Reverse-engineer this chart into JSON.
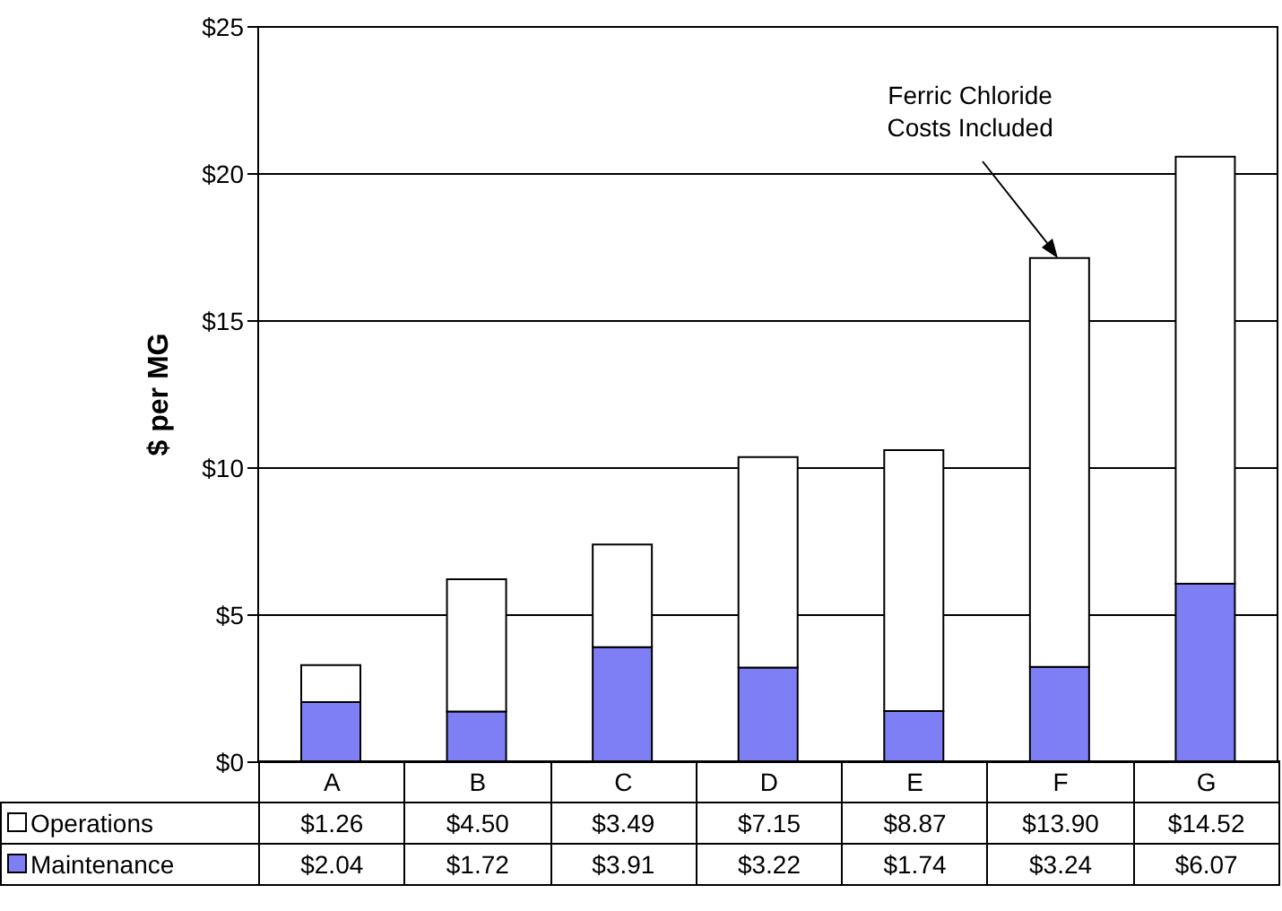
{
  "chart_data": {
    "type": "bar",
    "stacked": true,
    "ylabel": "$ per MG",
    "categories": [
      "A",
      "B",
      "C",
      "D",
      "E",
      "F",
      "G"
    ],
    "series": [
      {
        "name": "Maintenance",
        "color": "#7f7ff5",
        "values": [
          2.04,
          1.72,
          3.91,
          3.22,
          1.74,
          3.24,
          6.07
        ],
        "value_labels": [
          "$2.04",
          "$1.72",
          "$3.91",
          "$3.22",
          "$1.74",
          "$3.24",
          "$6.07"
        ]
      },
      {
        "name": "Operations",
        "color": "#ffffff",
        "values": [
          1.26,
          4.5,
          3.49,
          7.15,
          8.87,
          13.9,
          14.52
        ],
        "value_labels": [
          "$1.26",
          "$4.50",
          "$3.49",
          "$7.15",
          "$8.87",
          "$13.90",
          "$14.52"
        ]
      }
    ],
    "ylim": [
      0,
      25
    ],
    "yticks": [
      {
        "value": 0,
        "label": "$0"
      },
      {
        "value": 5,
        "label": "$5"
      },
      {
        "value": 10,
        "label": "$10"
      },
      {
        "value": 15,
        "label": "$15"
      },
      {
        "value": 20,
        "label": "$20"
      },
      {
        "value": 25,
        "label": "$25"
      }
    ],
    "grid": "y",
    "legend": "bottom",
    "annotations": [
      {
        "text": "Ferric Chloride Costs Included",
        "x": "F",
        "y": 17.14
      }
    ]
  }
}
